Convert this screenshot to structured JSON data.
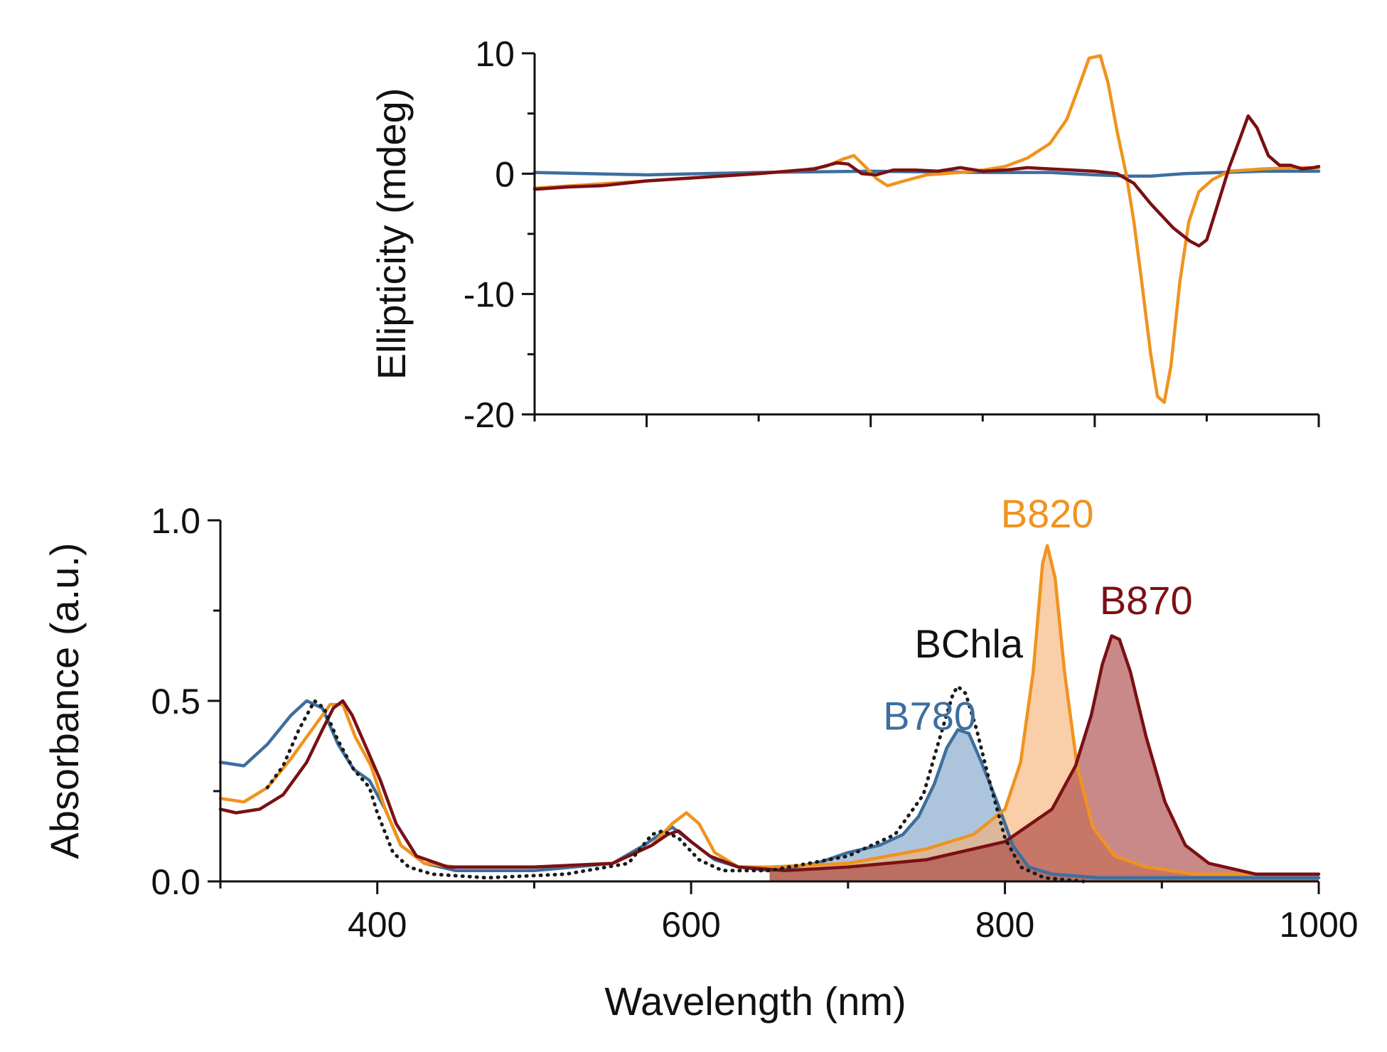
{
  "chart_data": [
    {
      "id": "cd",
      "type": "line",
      "ylabel": "Ellipticity (mdeg)",
      "xlabel": "",
      "xlim": [
        300,
        1000
      ],
      "ylim": [
        -20,
        10
      ],
      "yticks": [
        -20,
        -10,
        0,
        10
      ],
      "ytick_labels": [
        "-20",
        "-10",
        "0",
        "10"
      ],
      "xticks": [
        400,
        600,
        800,
        1000
      ],
      "show_xtick_labels": false,
      "series": [
        {
          "name": "B780",
          "color": "#3d6f9e",
          "points": [
            [
              300,
              0.1
            ],
            [
              400,
              -0.1
            ],
            [
              500,
              0.1
            ],
            [
              600,
              0.2
            ],
            [
              700,
              0.1
            ],
            [
              760,
              0.1
            ],
            [
              800,
              -0.1
            ],
            [
              830,
              -0.2
            ],
            [
              850,
              -0.2
            ],
            [
              880,
              0.0
            ],
            [
              950,
              0.2
            ],
            [
              1000,
              0.2
            ]
          ]
        },
        {
          "name": "B820",
          "color": "#f0931e",
          "points": [
            [
              300,
              -1.2
            ],
            [
              350,
              -0.9
            ],
            [
              400,
              -0.6
            ],
            [
              450,
              -0.3
            ],
            [
              500,
              0
            ],
            [
              540,
              0.3
            ],
            [
              560,
              0.6
            ],
            [
              575,
              1.2
            ],
            [
              585,
              1.5
            ],
            [
              595,
              0.6
            ],
            [
              605,
              -0.4
            ],
            [
              615,
              -1.0
            ],
            [
              630,
              -0.6
            ],
            [
              650,
              -0.1
            ],
            [
              680,
              0.1
            ],
            [
              700,
              0.3
            ],
            [
              720,
              0.6
            ],
            [
              740,
              1.3
            ],
            [
              760,
              2.5
            ],
            [
              775,
              4.5
            ],
            [
              785,
              7
            ],
            [
              795,
              9.6
            ],
            [
              805,
              9.8
            ],
            [
              812,
              7.5
            ],
            [
              820,
              3.5
            ],
            [
              828,
              0
            ],
            [
              835,
              -4
            ],
            [
              842,
              -9
            ],
            [
              850,
              -15
            ],
            [
              856,
              -18.5
            ],
            [
              862,
              -19
            ],
            [
              868,
              -16
            ],
            [
              876,
              -9
            ],
            [
              884,
              -4
            ],
            [
              893,
              -1.5
            ],
            [
              905,
              -0.5
            ],
            [
              920,
              0.2
            ],
            [
              950,
              0.4
            ],
            [
              980,
              0.5
            ],
            [
              1000,
              0.5
            ]
          ]
        },
        {
          "name": "B870",
          "color": "#7a1014",
          "points": [
            [
              300,
              -1.3
            ],
            [
              330,
              -1.1
            ],
            [
              360,
              -1.0
            ],
            [
              400,
              -0.6
            ],
            [
              450,
              -0.3
            ],
            [
              500,
              0
            ],
            [
              550,
              0.4
            ],
            [
              570,
              0.9
            ],
            [
              580,
              0.8
            ],
            [
              592,
              0
            ],
            [
              605,
              -0.1
            ],
            [
              620,
              0.3
            ],
            [
              640,
              0.3
            ],
            [
              660,
              0.2
            ],
            [
              680,
              0.5
            ],
            [
              700,
              0.2
            ],
            [
              720,
              0.3
            ],
            [
              740,
              0.5
            ],
            [
              760,
              0.4
            ],
            [
              780,
              0.3
            ],
            [
              800,
              0.2
            ],
            [
              820,
              0
            ],
            [
              835,
              -0.8
            ],
            [
              850,
              -2.5
            ],
            [
              870,
              -4.5
            ],
            [
              885,
              -5.6
            ],
            [
              893,
              -6
            ],
            [
              900,
              -5.5
            ],
            [
              910,
              -2.5
            ],
            [
              920,
              0.5
            ],
            [
              930,
              3
            ],
            [
              937,
              4.8
            ],
            [
              945,
              3.8
            ],
            [
              955,
              1.5
            ],
            [
              965,
              0.7
            ],
            [
              975,
              0.7
            ],
            [
              985,
              0.4
            ],
            [
              995,
              0.5
            ],
            [
              1000,
              0.6
            ]
          ]
        }
      ]
    },
    {
      "id": "abs",
      "type": "area",
      "ylabel": "Absorbance (a.u.)",
      "xlabel": "Wavelength (nm)",
      "xlim": [
        300,
        1000
      ],
      "ylim": [
        0,
        1.0
      ],
      "yticks": [
        0.0,
        0.5,
        1.0
      ],
      "ytick_labels": [
        "0.0",
        "0.5",
        "1.0"
      ],
      "xticks": [
        400,
        600,
        800,
        1000
      ],
      "xtick_labels": [
        "400",
        "600",
        "800",
        "1000"
      ],
      "series": [
        {
          "name": "B780",
          "color": "#3d6f9e",
          "fill": "#7aa0c8",
          "fill_from": 650,
          "fill_order": 1,
          "points": [
            [
              300,
              0.33
            ],
            [
              315,
              0.32
            ],
            [
              330,
              0.38
            ],
            [
              345,
              0.46
            ],
            [
              355,
              0.5
            ],
            [
              365,
              0.48
            ],
            [
              375,
              0.38
            ],
            [
              385,
              0.31
            ],
            [
              395,
              0.28
            ],
            [
              405,
              0.2
            ],
            [
              415,
              0.1
            ],
            [
              430,
              0.05
            ],
            [
              450,
              0.03
            ],
            [
              500,
              0.03
            ],
            [
              550,
              0.05
            ],
            [
              570,
              0.1
            ],
            [
              580,
              0.13
            ],
            [
              588,
              0.15
            ],
            [
              600,
              0.11
            ],
            [
              615,
              0.06
            ],
            [
              630,
              0.04
            ],
            [
              650,
              0.03
            ],
            [
              680,
              0.05
            ],
            [
              700,
              0.08
            ],
            [
              720,
              0.1
            ],
            [
              735,
              0.13
            ],
            [
              745,
              0.18
            ],
            [
              755,
              0.27
            ],
            [
              763,
              0.37
            ],
            [
              770,
              0.42
            ],
            [
              777,
              0.41
            ],
            [
              785,
              0.33
            ],
            [
              795,
              0.22
            ],
            [
              805,
              0.1
            ],
            [
              815,
              0.04
            ],
            [
              830,
              0.02
            ],
            [
              860,
              0.01
            ],
            [
              900,
              0.01
            ],
            [
              950,
              0.01
            ],
            [
              1000,
              0.01
            ]
          ]
        },
        {
          "name": "B820",
          "color": "#f0931e",
          "fill": "#f6b073",
          "fill_from": 650,
          "fill_order": 2,
          "points": [
            [
              300,
              0.23
            ],
            [
              315,
              0.22
            ],
            [
              330,
              0.26
            ],
            [
              345,
              0.34
            ],
            [
              360,
              0.43
            ],
            [
              370,
              0.49
            ],
            [
              378,
              0.49
            ],
            [
              386,
              0.4
            ],
            [
              396,
              0.32
            ],
            [
              405,
              0.2
            ],
            [
              415,
              0.1
            ],
            [
              430,
              0.05
            ],
            [
              450,
              0.04
            ],
            [
              500,
              0.04
            ],
            [
              550,
              0.05
            ],
            [
              575,
              0.1
            ],
            [
              588,
              0.16
            ],
            [
              597,
              0.19
            ],
            [
              605,
              0.16
            ],
            [
              615,
              0.08
            ],
            [
              630,
              0.04
            ],
            [
              650,
              0.04
            ],
            [
              700,
              0.05
            ],
            [
              750,
              0.09
            ],
            [
              780,
              0.13
            ],
            [
              800,
              0.2
            ],
            [
              810,
              0.33
            ],
            [
              818,
              0.58
            ],
            [
              824,
              0.88
            ],
            [
              827,
              0.93
            ],
            [
              832,
              0.84
            ],
            [
              838,
              0.58
            ],
            [
              846,
              0.32
            ],
            [
              856,
              0.15
            ],
            [
              870,
              0.07
            ],
            [
              890,
              0.04
            ],
            [
              920,
              0.02
            ],
            [
              960,
              0.02
            ],
            [
              1000,
              0.02
            ]
          ]
        },
        {
          "name": "B870",
          "color": "#7a1014",
          "fill": "#a8403f",
          "fill_from": 650,
          "fill_order": 3,
          "points": [
            [
              300,
              0.2
            ],
            [
              310,
              0.19
            ],
            [
              325,
              0.2
            ],
            [
              340,
              0.24
            ],
            [
              355,
              0.33
            ],
            [
              365,
              0.42
            ],
            [
              372,
              0.48
            ],
            [
              378,
              0.5
            ],
            [
              384,
              0.46
            ],
            [
              392,
              0.38
            ],
            [
              402,
              0.28
            ],
            [
              412,
              0.16
            ],
            [
              425,
              0.07
            ],
            [
              445,
              0.04
            ],
            [
              500,
              0.04
            ],
            [
              550,
              0.05
            ],
            [
              575,
              0.1
            ],
            [
              585,
              0.13
            ],
            [
              592,
              0.14
            ],
            [
              600,
              0.11
            ],
            [
              612,
              0.07
            ],
            [
              630,
              0.04
            ],
            [
              660,
              0.03
            ],
            [
              700,
              0.04
            ],
            [
              750,
              0.06
            ],
            [
              800,
              0.11
            ],
            [
              830,
              0.2
            ],
            [
              845,
              0.32
            ],
            [
              855,
              0.46
            ],
            [
              862,
              0.6
            ],
            [
              868,
              0.68
            ],
            [
              873,
              0.67
            ],
            [
              880,
              0.58
            ],
            [
              890,
              0.4
            ],
            [
              902,
              0.22
            ],
            [
              915,
              0.1
            ],
            [
              930,
              0.05
            ],
            [
              960,
              0.02
            ],
            [
              1000,
              0.02
            ]
          ]
        },
        {
          "name": "BChla",
          "color": "#1a1a1a",
          "dotted": true,
          "x_start": 330,
          "points": [
            [
              330,
              0.26
            ],
            [
              340,
              0.32
            ],
            [
              350,
              0.42
            ],
            [
              360,
              0.5
            ],
            [
              366,
              0.48
            ],
            [
              375,
              0.39
            ],
            [
              385,
              0.31
            ],
            [
              395,
              0.26
            ],
            [
              400,
              0.19
            ],
            [
              410,
              0.08
            ],
            [
              420,
              0.04
            ],
            [
              435,
              0.02
            ],
            [
              470,
              0.01
            ],
            [
              520,
              0.02
            ],
            [
              560,
              0.05
            ],
            [
              575,
              0.13
            ],
            [
              582,
              0.14
            ],
            [
              592,
              0.12
            ],
            [
              605,
              0.06
            ],
            [
              620,
              0.03
            ],
            [
              650,
              0.03
            ],
            [
              700,
              0.07
            ],
            [
              730,
              0.13
            ],
            [
              748,
              0.24
            ],
            [
              760,
              0.42
            ],
            [
              767,
              0.52
            ],
            [
              770,
              0.54
            ],
            [
              775,
              0.52
            ],
            [
              782,
              0.42
            ],
            [
              790,
              0.28
            ],
            [
              800,
              0.12
            ],
            [
              810,
              0.04
            ],
            [
              825,
              0.01
            ],
            [
              850,
              0.0
            ]
          ]
        }
      ],
      "annotations": [
        {
          "text": "BChla",
          "color": "#111111",
          "x": 777,
          "y": 0.62
        },
        {
          "text": "B780",
          "color": "#3d6f9e",
          "x": 752,
          "y": 0.42
        },
        {
          "text": "B820",
          "color": "#f0931e",
          "x": 827,
          "y": 0.98
        },
        {
          "text": "B870",
          "color": "#7a1014",
          "x": 890,
          "y": 0.74
        }
      ]
    }
  ]
}
